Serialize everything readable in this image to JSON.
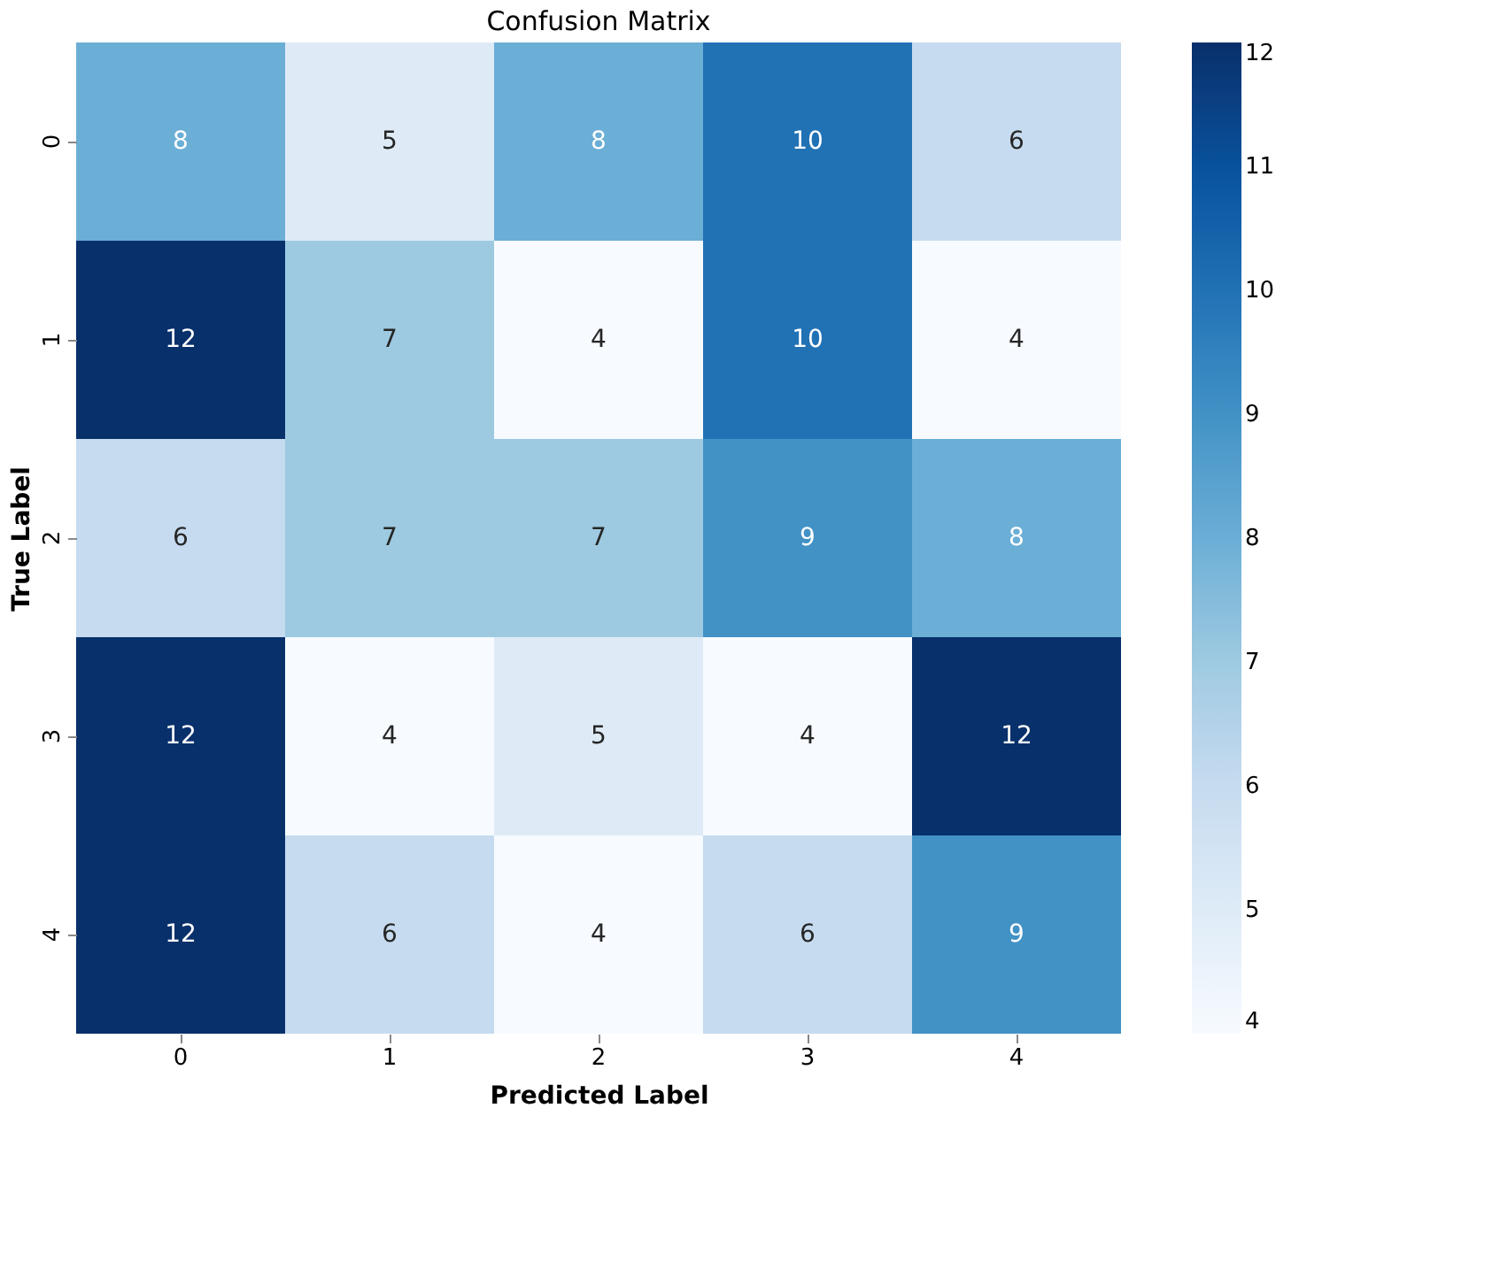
{
  "chart_data": {
    "type": "heatmap",
    "title": "Confusion Matrix",
    "xlabel": "Predicted Label",
    "ylabel": "True Label",
    "categories": [
      "0",
      "1",
      "2",
      "3",
      "4"
    ],
    "y_categories": [
      "0",
      "1",
      "2",
      "3",
      "4"
    ],
    "cells": [
      [
        8,
        5,
        8,
        10,
        6
      ],
      [
        12,
        7,
        4,
        10,
        4
      ],
      [
        6,
        7,
        7,
        9,
        8
      ],
      [
        12,
        4,
        5,
        4,
        12
      ],
      [
        12,
        6,
        4,
        6,
        9
      ]
    ],
    "clim": [
      4,
      12
    ],
    "cticks": [
      4,
      5,
      6,
      7,
      8,
      9,
      10,
      11,
      12
    ],
    "data_labels": true,
    "grid": false
  }
}
